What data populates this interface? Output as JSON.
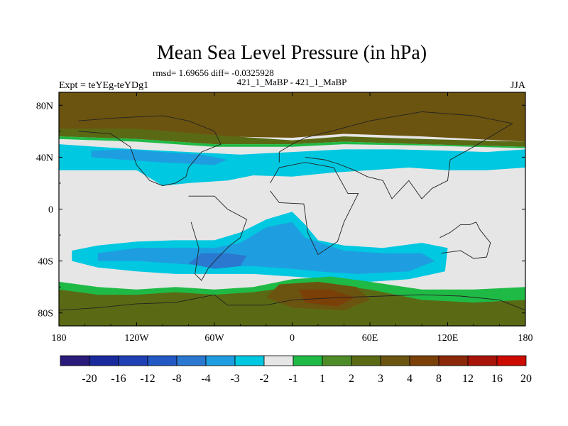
{
  "chart_data": {
    "type": "heatmap",
    "title": "Mean Sea Level Pressure (in hPa)",
    "stats_line": "rmsd= 1.69656 diff= -0.0325928",
    "center_label": "421_1_MaBP - 421_1_MaBP",
    "left_label": "Expt = teYEg-teYDg1",
    "right_label": "JJA",
    "x_ticks": [
      {
        "value": -180,
        "label": "180"
      },
      {
        "value": -120,
        "label": "120W"
      },
      {
        "value": -60,
        "label": "60W"
      },
      {
        "value": 0,
        "label": "0"
      },
      {
        "value": 60,
        "label": "60E"
      },
      {
        "value": 120,
        "label": "120E"
      },
      {
        "value": 180,
        "label": "180"
      }
    ],
    "y_ticks": [
      {
        "value": 80,
        "label": "80N"
      },
      {
        "value": 40,
        "label": "40N"
      },
      {
        "value": 0,
        "label": "0"
      },
      {
        "value": -40,
        "label": "40S"
      },
      {
        "value": -80,
        "label": "80S"
      }
    ],
    "xlim": [
      -180,
      180
    ],
    "ylim": [
      -90,
      90
    ],
    "colorbar": {
      "colors": [
        "#2a1a7a",
        "#1a2a9c",
        "#1e40b4",
        "#2258c4",
        "#2a78d0",
        "#1e9ee0",
        "#00c8e0",
        "#e6e6e6",
        "#1fba45",
        "#4e8c28",
        "#5a6a14",
        "#6b5410",
        "#7a4008",
        "#8a2808",
        "#a81408",
        "#cc0a00"
      ],
      "labels": [
        "-20",
        "-16",
        "-12",
        "-8",
        "-4",
        "-3",
        "-2",
        "-1",
        "1",
        "2",
        "3",
        "4",
        "8",
        "12",
        "16",
        "20"
      ]
    },
    "regions": [
      {
        "name": "arctic-high",
        "level": "4",
        "color": "#6b5410",
        "points": [
          [
            -180,
            90
          ],
          [
            180,
            90
          ],
          [
            180,
            52
          ],
          [
            100,
            56
          ],
          [
            40,
            58
          ],
          [
            0,
            55
          ],
          [
            -60,
            56
          ],
          [
            -120,
            60
          ],
          [
            -180,
            60
          ]
        ]
      },
      {
        "name": "arctic-mid",
        "level": "3",
        "color": "#5a6a14",
        "points": [
          [
            -180,
            62
          ],
          [
            -120,
            62
          ],
          [
            -60,
            57
          ],
          [
            0,
            53
          ],
          [
            40,
            56
          ],
          [
            100,
            54
          ],
          [
            180,
            52
          ],
          [
            180,
            48
          ],
          [
            100,
            50
          ],
          [
            40,
            52
          ],
          [
            0,
            50
          ],
          [
            -60,
            50
          ],
          [
            -120,
            54
          ],
          [
            -180,
            56
          ]
        ]
      },
      {
        "name": "arctic-edge",
        "level": "2",
        "color": "#1fba45",
        "points": [
          [
            -180,
            56
          ],
          [
            -120,
            54
          ],
          [
            -60,
            50
          ],
          [
            0,
            50
          ],
          [
            40,
            52
          ],
          [
            100,
            50
          ],
          [
            180,
            48
          ],
          [
            180,
            47
          ],
          [
            100,
            49
          ],
          [
            40,
            50
          ],
          [
            0,
            48
          ],
          [
            -60,
            48
          ],
          [
            -120,
            52
          ],
          [
            -180,
            54
          ]
        ]
      },
      {
        "name": "north-trough-light",
        "level": "-1",
        "color": "#00c8e0",
        "points": [
          [
            -180,
            50
          ],
          [
            -150,
            48
          ],
          [
            -120,
            46
          ],
          [
            -80,
            44
          ],
          [
            -40,
            42
          ],
          [
            0,
            44
          ],
          [
            40,
            46
          ],
          [
            80,
            46
          ],
          [
            120,
            45
          ],
          [
            150,
            44
          ],
          [
            180,
            46
          ],
          [
            180,
            32
          ],
          [
            150,
            30
          ],
          [
            120,
            30
          ],
          [
            90,
            32
          ],
          [
            60,
            30
          ],
          [
            30,
            28
          ],
          [
            0,
            25
          ],
          [
            -30,
            26
          ],
          [
            -50,
            22
          ],
          [
            -80,
            20
          ],
          [
            -100,
            18
          ],
          [
            -110,
            24
          ],
          [
            -120,
            30
          ],
          [
            -150,
            30
          ],
          [
            -180,
            30
          ]
        ]
      },
      {
        "name": "north-trough-mid",
        "level": "-2",
        "color": "#1e9ee0",
        "points": [
          [
            -155,
            45
          ],
          [
            -130,
            46
          ],
          [
            -100,
            44
          ],
          [
            -70,
            42
          ],
          [
            -50,
            38
          ],
          [
            -60,
            34
          ],
          [
            -100,
            36
          ],
          [
            -130,
            38
          ],
          [
            -155,
            40
          ]
        ]
      },
      {
        "name": "south-trough-light",
        "level": "-1",
        "color": "#00c8e0",
        "points": [
          [
            -170,
            -32
          ],
          [
            -150,
            -28
          ],
          [
            -120,
            -25
          ],
          [
            -90,
            -24
          ],
          [
            -60,
            -24
          ],
          [
            -40,
            -18
          ],
          [
            -20,
            -8
          ],
          [
            0,
            -2
          ],
          [
            10,
            -12
          ],
          [
            20,
            -24
          ],
          [
            40,
            -28
          ],
          [
            70,
            -30
          ],
          [
            100,
            -26
          ],
          [
            120,
            -30
          ],
          [
            118,
            -48
          ],
          [
            90,
            -54
          ],
          [
            60,
            -56
          ],
          [
            30,
            -54
          ],
          [
            0,
            -52
          ],
          [
            -30,
            -50
          ],
          [
            -60,
            -50
          ],
          [
            -90,
            -50
          ],
          [
            -120,
            -48
          ],
          [
            -150,
            -45
          ],
          [
            -170,
            -40
          ]
        ]
      },
      {
        "name": "south-trough-mid",
        "level": "-2",
        "color": "#1e9ee0",
        "points": [
          [
            -150,
            -34
          ],
          [
            -120,
            -30
          ],
          [
            -90,
            -30
          ],
          [
            -60,
            -30
          ],
          [
            -40,
            -26
          ],
          [
            -20,
            -14
          ],
          [
            0,
            -10
          ],
          [
            10,
            -22
          ],
          [
            40,
            -32
          ],
          [
            70,
            -34
          ],
          [
            100,
            -34
          ],
          [
            110,
            -40
          ],
          [
            90,
            -48
          ],
          [
            50,
            -50
          ],
          [
            20,
            -48
          ],
          [
            0,
            -46
          ],
          [
            -30,
            -44
          ],
          [
            -60,
            -44
          ],
          [
            -90,
            -42
          ],
          [
            -120,
            -40
          ],
          [
            -150,
            -40
          ]
        ]
      },
      {
        "name": "south-trough-dark",
        "level": "-3",
        "color": "#2a78d0",
        "points": [
          [
            -70,
            -34
          ],
          [
            -50,
            -34
          ],
          [
            -35,
            -36
          ],
          [
            -40,
            -44
          ],
          [
            -60,
            -46
          ],
          [
            -80,
            -42
          ]
        ]
      },
      {
        "name": "antarctic-edge",
        "level": "2",
        "color": "#1fba45",
        "points": [
          [
            -180,
            -56
          ],
          [
            -150,
            -60
          ],
          [
            -120,
            -62
          ],
          [
            -90,
            -60
          ],
          [
            -60,
            -62
          ],
          [
            -30,
            -60
          ],
          [
            0,
            -54
          ],
          [
            30,
            -52
          ],
          [
            60,
            -56
          ],
          [
            100,
            -62
          ],
          [
            140,
            -62
          ],
          [
            180,
            -60
          ],
          [
            180,
            -90
          ],
          [
            -180,
            -90
          ]
        ]
      },
      {
        "name": "antarctic-mid",
        "level": "3",
        "color": "#5a6a14",
        "points": [
          [
            -180,
            -62
          ],
          [
            -150,
            -66
          ],
          [
            -120,
            -66
          ],
          [
            -90,
            -64
          ],
          [
            -60,
            -66
          ],
          [
            -30,
            -64
          ],
          [
            0,
            -60
          ],
          [
            30,
            -58
          ],
          [
            60,
            -62
          ],
          [
            100,
            -70
          ],
          [
            140,
            -72
          ],
          [
            180,
            -70
          ],
          [
            180,
            -90
          ],
          [
            -180,
            -90
          ]
        ]
      },
      {
        "name": "antarctic-high",
        "level": "4",
        "color": "#6b5410",
        "points": [
          [
            -10,
            -58
          ],
          [
            20,
            -56
          ],
          [
            50,
            -60
          ],
          [
            60,
            -70
          ],
          [
            40,
            -78
          ],
          [
            0,
            -76
          ],
          [
            -20,
            -68
          ]
        ]
      },
      {
        "name": "antarctic-core",
        "level": "8",
        "color": "#7a4008",
        "points": [
          [
            5,
            -62
          ],
          [
            30,
            -62
          ],
          [
            48,
            -68
          ],
          [
            35,
            -75
          ],
          [
            10,
            -72
          ]
        ]
      }
    ],
    "coastlines": [
      {
        "name": "north-america",
        "points": [
          [
            -165,
            68
          ],
          [
            -140,
            70
          ],
          [
            -100,
            72
          ],
          [
            -80,
            68
          ],
          [
            -60,
            60
          ],
          [
            -55,
            50
          ],
          [
            -70,
            44
          ],
          [
            -80,
            32
          ],
          [
            -82,
            25
          ],
          [
            -90,
            20
          ],
          [
            -100,
            18
          ],
          [
            -110,
            22
          ],
          [
            -120,
            34
          ],
          [
            -125,
            48
          ],
          [
            -140,
            58
          ],
          [
            -165,
            60
          ]
        ]
      },
      {
        "name": "south-america",
        "points": [
          [
            -80,
            10
          ],
          [
            -60,
            10
          ],
          [
            -50,
            0
          ],
          [
            -35,
            -8
          ],
          [
            -40,
            -22
          ],
          [
            -48,
            -28
          ],
          [
            -58,
            -38
          ],
          [
            -65,
            -46
          ],
          [
            -70,
            -55
          ],
          [
            -75,
            -50
          ],
          [
            -72,
            -30
          ],
          [
            -78,
            -10
          ]
        ]
      },
      {
        "name": "africa",
        "points": [
          [
            -17,
            20
          ],
          [
            -10,
            32
          ],
          [
            10,
            36
          ],
          [
            32,
            32
          ],
          [
            43,
            12
          ],
          [
            51,
            12
          ],
          [
            40,
            -10
          ],
          [
            35,
            -25
          ],
          [
            20,
            -35
          ],
          [
            12,
            -18
          ],
          [
            9,
            4
          ],
          [
            -10,
            5
          ],
          [
            -17,
            14
          ]
        ]
      },
      {
        "name": "eurasia",
        "points": [
          [
            -10,
            36
          ],
          [
            -10,
            44
          ],
          [
            0,
            50
          ],
          [
            10,
            55
          ],
          [
            30,
            60
          ],
          [
            60,
            68
          ],
          [
            100,
            75
          ],
          [
            140,
            72
          ],
          [
            170,
            66
          ],
          [
            160,
            60
          ],
          [
            140,
            48
          ],
          [
            122,
            38
          ],
          [
            120,
            22
          ],
          [
            108,
            16
          ],
          [
            100,
            8
          ],
          [
            90,
            22
          ],
          [
            77,
            8
          ],
          [
            70,
            22
          ],
          [
            58,
            25
          ],
          [
            48,
            30
          ],
          [
            35,
            35
          ],
          [
            25,
            38
          ],
          [
            10,
            40
          ]
        ]
      },
      {
        "name": "australia",
        "points": [
          [
            114,
            -22
          ],
          [
            122,
            -18
          ],
          [
            130,
            -12
          ],
          [
            137,
            -12
          ],
          [
            142,
            -10
          ],
          [
            145,
            -16
          ],
          [
            153,
            -26
          ],
          [
            150,
            -37
          ],
          [
            140,
            -38
          ],
          [
            130,
            -32
          ],
          [
            115,
            -34
          ]
        ]
      },
      {
        "name": "antarctica",
        "points": [
          [
            -180,
            -78
          ],
          [
            -150,
            -76
          ],
          [
            -120,
            -73
          ],
          [
            -90,
            -72
          ],
          [
            -70,
            -68
          ],
          [
            -60,
            -66
          ],
          [
            -50,
            -74
          ],
          [
            -20,
            -74
          ],
          [
            0,
            -70
          ],
          [
            40,
            -68
          ],
          [
            70,
            -67
          ],
          [
            100,
            -66
          ],
          [
            130,
            -67
          ],
          [
            160,
            -70
          ],
          [
            180,
            -78
          ]
        ]
      }
    ]
  }
}
